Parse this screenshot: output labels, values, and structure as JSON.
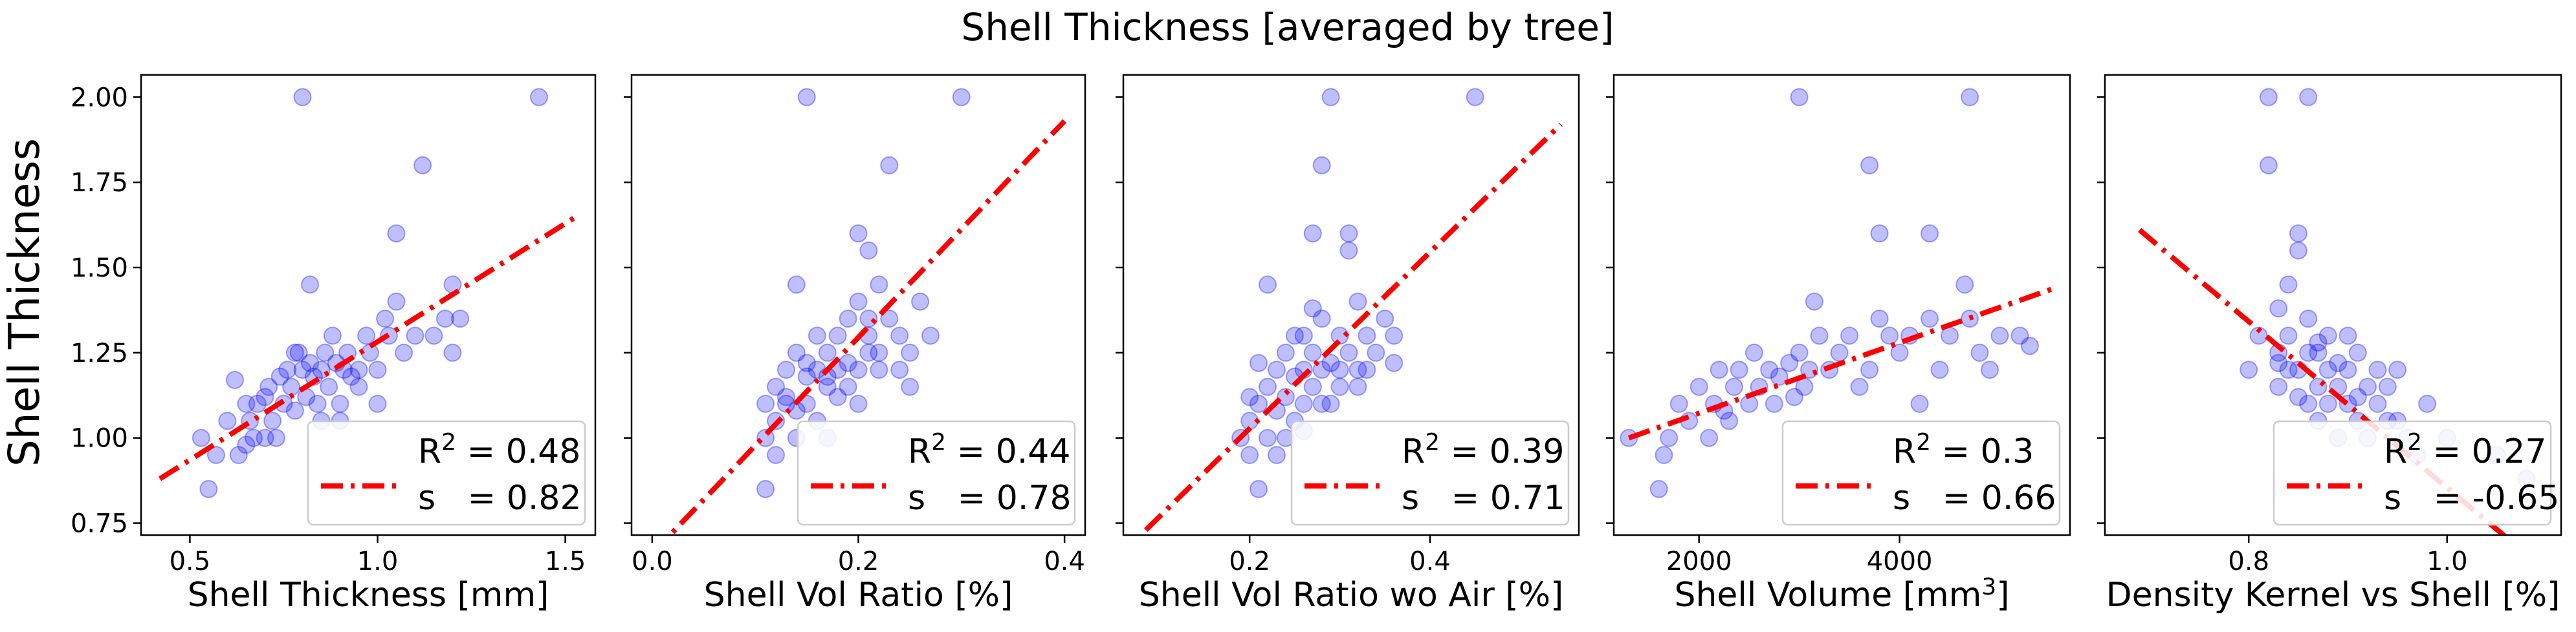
{
  "suptitle": "Shell Thickness [averaged by tree]",
  "shared_ylabel": "Shell Thickness",
  "colors": {
    "points": "#0000ff",
    "fit_line": "#ff0000",
    "axes": "#000000"
  },
  "chart_data": [
    {
      "type": "scatter",
      "xlabel": "Shell Thickness [mm]",
      "xlabel_sup": "",
      "xlabel_suffix": "",
      "xlim": [
        0.37,
        1.58
      ],
      "ylim": [
        0.715,
        2.065
      ],
      "xticks": [
        0.5,
        1.0,
        1.5
      ],
      "xtick_labels": [
        "0.5",
        "1.0",
        "1.5"
      ],
      "yticks": [
        0.75,
        1.0,
        1.25,
        1.5,
        1.75,
        2.0
      ],
      "ytick_labels": [
        "0.75",
        "1.00",
        "1.25",
        "1.50",
        "1.75",
        "2.00"
      ],
      "fit": {
        "x1": 0.42,
        "y1": 0.88,
        "x2": 1.53,
        "y2": 1.65
      },
      "legend": {
        "r2_label": "R",
        "r2_sup": "2",
        "r2_value": " = 0.48",
        "s_label": "s   = 0.82"
      },
      "points": [
        [
          0.53,
          1.0
        ],
        [
          0.55,
          0.85
        ],
        [
          0.57,
          0.95
        ],
        [
          0.6,
          1.05
        ],
        [
          0.62,
          1.17
        ],
        [
          0.63,
          0.95
        ],
        [
          0.65,
          1.1
        ],
        [
          0.66,
          1.05
        ],
        [
          0.67,
          1.0
        ],
        [
          0.68,
          1.1
        ],
        [
          0.7,
          1.12
        ],
        [
          0.71,
          1.15
        ],
        [
          0.72,
          1.05
        ],
        [
          0.73,
          1.0
        ],
        [
          0.74,
          1.18
        ],
        [
          0.75,
          1.1
        ],
        [
          0.76,
          1.2
        ],
        [
          0.77,
          1.15
        ],
        [
          0.78,
          1.08
        ],
        [
          0.79,
          1.25
        ],
        [
          0.8,
          1.2
        ],
        [
          0.81,
          1.12
        ],
        [
          0.82,
          1.22
        ],
        [
          0.83,
          1.18
        ],
        [
          0.84,
          1.1
        ],
        [
          0.85,
          1.2
        ],
        [
          0.86,
          1.25
        ],
        [
          0.87,
          1.15
        ],
        [
          0.88,
          1.3
        ],
        [
          0.89,
          1.22
        ],
        [
          0.9,
          1.1
        ],
        [
          0.91,
          1.2
        ],
        [
          0.92,
          1.25
        ],
        [
          0.93,
          1.18
        ],
        [
          0.95,
          1.2
        ],
        [
          0.97,
          1.3
        ],
        [
          0.98,
          1.25
        ],
        [
          1.0,
          1.2
        ],
        [
          1.02,
          1.35
        ],
        [
          1.03,
          1.3
        ],
        [
          1.05,
          1.4
        ],
        [
          1.05,
          1.6
        ],
        [
          1.07,
          1.25
        ],
        [
          1.1,
          1.3
        ],
        [
          1.12,
          1.8
        ],
        [
          1.15,
          1.3
        ],
        [
          1.18,
          1.35
        ],
        [
          1.2,
          1.45
        ],
        [
          1.2,
          1.25
        ],
        [
          1.22,
          1.35
        ],
        [
          0.8,
          2.0
        ],
        [
          1.43,
          2.0
        ],
        [
          0.82,
          1.45
        ],
        [
          0.7,
          1.0
        ],
        [
          0.9,
          1.05
        ],
        [
          0.95,
          1.15
        ],
        [
          1.0,
          1.1
        ],
        [
          0.78,
          1.25
        ],
        [
          0.85,
          1.05
        ],
        [
          0.65,
          0.98
        ]
      ]
    },
    {
      "type": "scatter",
      "xlabel": "Shell Vol Ratio [%]",
      "xlabel_sup": "",
      "xlabel_suffix": "",
      "xlim": [
        -0.02,
        0.42
      ],
      "ylim": [
        0.715,
        2.065
      ],
      "xticks": [
        0.0,
        0.2,
        0.4
      ],
      "xtick_labels": [
        "0.0",
        "0.2",
        "0.4"
      ],
      "yticks": [
        0.75,
        1.0,
        1.25,
        1.5,
        1.75,
        2.0
      ],
      "ytick_labels": [
        "",
        "",
        "",
        "",
        "",
        ""
      ],
      "fit": {
        "x1": 0.0,
        "y1": 0.66,
        "x2": 0.4,
        "y2": 1.93
      },
      "legend": {
        "r2_label": "R",
        "r2_sup": "2",
        "r2_value": " = 0.44",
        "s_label": "s   = 0.78"
      },
      "points": [
        [
          0.11,
          0.85
        ],
        [
          0.11,
          1.0
        ],
        [
          0.12,
          1.05
        ],
        [
          0.12,
          1.15
        ],
        [
          0.13,
          1.1
        ],
        [
          0.13,
          1.2
        ],
        [
          0.14,
          1.0
        ],
        [
          0.14,
          1.25
        ],
        [
          0.15,
          1.1
        ],
        [
          0.15,
          1.18
        ],
        [
          0.16,
          1.05
        ],
        [
          0.16,
          1.2
        ],
        [
          0.17,
          1.25
        ],
        [
          0.17,
          1.15
        ],
        [
          0.18,
          1.3
        ],
        [
          0.18,
          1.12
        ],
        [
          0.19,
          1.22
        ],
        [
          0.19,
          1.35
        ],
        [
          0.2,
          1.2
        ],
        [
          0.2,
          1.4
        ],
        [
          0.21,
          1.25
        ],
        [
          0.21,
          1.3
        ],
        [
          0.22,
          1.45
        ],
        [
          0.22,
          1.2
        ],
        [
          0.23,
          1.35
        ],
        [
          0.24,
          1.3
        ],
        [
          0.25,
          1.25
        ],
        [
          0.26,
          1.4
        ],
        [
          0.14,
          1.45
        ],
        [
          0.2,
          1.6
        ],
        [
          0.21,
          1.55
        ],
        [
          0.23,
          1.8
        ],
        [
          0.15,
          2.0
        ],
        [
          0.3,
          2.0
        ],
        [
          0.17,
          1.0
        ],
        [
          0.12,
          0.95
        ],
        [
          0.18,
          1.2
        ],
        [
          0.16,
          1.3
        ],
        [
          0.2,
          1.1
        ],
        [
          0.22,
          1.25
        ],
        [
          0.13,
          1.12
        ],
        [
          0.15,
          1.22
        ],
        [
          0.19,
          1.15
        ],
        [
          0.24,
          1.2
        ],
        [
          0.27,
          1.3
        ],
        [
          0.11,
          1.1
        ],
        [
          0.17,
          1.18
        ],
        [
          0.14,
          1.08
        ],
        [
          0.21,
          1.35
        ],
        [
          0.25,
          1.15
        ]
      ]
    },
    {
      "type": "scatter",
      "xlabel": "Shell Vol Ratio wo Air [%]",
      "xlabel_sup": "",
      "xlabel_suffix": "",
      "xlim": [
        0.06,
        0.565
      ],
      "ylim": [
        0.715,
        2.065
      ],
      "xticks": [
        0.2,
        0.4
      ],
      "xtick_labels": [
        "0.2",
        "0.4"
      ],
      "yticks": [
        0.75,
        1.0,
        1.25,
        1.5,
        1.75,
        2.0
      ],
      "ytick_labels": [
        "",
        "",
        "",
        "",
        "",
        ""
      ],
      "fit": {
        "x1": 0.085,
        "y1": 0.73,
        "x2": 0.545,
        "y2": 1.92
      },
      "legend": {
        "r2_label": "R",
        "r2_sup": "2",
        "r2_value": " = 0.39",
        "s_label": "s   = 0.71"
      },
      "points": [
        [
          0.19,
          1.0
        ],
        [
          0.2,
          0.95
        ],
        [
          0.2,
          1.05
        ],
        [
          0.21,
          1.1
        ],
        [
          0.21,
          0.85
        ],
        [
          0.22,
          1.15
        ],
        [
          0.22,
          1.0
        ],
        [
          0.23,
          1.2
        ],
        [
          0.23,
          1.08
        ],
        [
          0.24,
          1.12
        ],
        [
          0.24,
          1.25
        ],
        [
          0.25,
          1.18
        ],
        [
          0.25,
          1.05
        ],
        [
          0.26,
          1.2
        ],
        [
          0.26,
          1.3
        ],
        [
          0.27,
          1.15
        ],
        [
          0.27,
          1.25
        ],
        [
          0.28,
          1.2
        ],
        [
          0.28,
          1.35
        ],
        [
          0.29,
          1.22
        ],
        [
          0.29,
          1.1
        ],
        [
          0.3,
          1.3
        ],
        [
          0.3,
          1.2
        ],
        [
          0.31,
          1.25
        ],
        [
          0.32,
          1.4
        ],
        [
          0.32,
          1.2
        ],
        [
          0.33,
          1.3
        ],
        [
          0.34,
          1.25
        ],
        [
          0.35,
          1.35
        ],
        [
          0.36,
          1.3
        ],
        [
          0.27,
          1.6
        ],
        [
          0.28,
          1.8
        ],
        [
          0.31,
          1.55
        ],
        [
          0.31,
          1.6
        ],
        [
          0.29,
          2.0
        ],
        [
          0.45,
          2.0
        ],
        [
          0.22,
          1.45
        ],
        [
          0.24,
          1.0
        ],
        [
          0.26,
          1.1
        ],
        [
          0.2,
          1.12
        ],
        [
          0.25,
          1.3
        ],
        [
          0.3,
          1.15
        ],
        [
          0.23,
          0.95
        ],
        [
          0.28,
          1.1
        ],
        [
          0.33,
          1.2
        ],
        [
          0.27,
          1.38
        ],
        [
          0.21,
          1.22
        ],
        [
          0.26,
          1.02
        ],
        [
          0.36,
          1.22
        ],
        [
          0.32,
          1.15
        ]
      ]
    },
    {
      "type": "scatter",
      "xlabel": "Shell Volume [mm",
      "xlabel_sup": "3",
      "xlabel_suffix": "]",
      "xlim": [
        1150,
        5700
      ],
      "ylim": [
        0.715,
        2.065
      ],
      "xticks": [
        2000,
        4000
      ],
      "xtick_labels": [
        "2000",
        "4000"
      ],
      "yticks": [
        0.75,
        1.0,
        1.25,
        1.5,
        1.75,
        2.0
      ],
      "ytick_labels": [
        "",
        "",
        "",
        "",
        "",
        ""
      ],
      "fit": {
        "x1": 1300,
        "y1": 1.0,
        "x2": 5550,
        "y2": 1.44
      },
      "legend": {
        "r2_label": "R",
        "r2_sup": "2",
        "r2_value": " = 0.3",
        "s_label": "s   = 0.66"
      },
      "points": [
        [
          1300,
          1.0
        ],
        [
          1600,
          0.85
        ],
        [
          1650,
          0.95
        ],
        [
          1700,
          1.0
        ],
        [
          1800,
          1.1
        ],
        [
          1900,
          1.05
        ],
        [
          2000,
          1.15
        ],
        [
          2100,
          1.0
        ],
        [
          2150,
          1.1
        ],
        [
          2200,
          1.2
        ],
        [
          2300,
          1.05
        ],
        [
          2350,
          1.15
        ],
        [
          2400,
          1.2
        ],
        [
          2500,
          1.1
        ],
        [
          2550,
          1.25
        ],
        [
          2600,
          1.15
        ],
        [
          2700,
          1.2
        ],
        [
          2750,
          1.1
        ],
        [
          2800,
          1.18
        ],
        [
          2900,
          1.22
        ],
        [
          2950,
          1.12
        ],
        [
          3000,
          1.25
        ],
        [
          3050,
          1.15
        ],
        [
          3100,
          1.2
        ],
        [
          3150,
          1.4
        ],
        [
          3200,
          1.3
        ],
        [
          3300,
          1.2
        ],
        [
          3400,
          1.25
        ],
        [
          3500,
          1.3
        ],
        [
          3600,
          1.15
        ],
        [
          3700,
          1.2
        ],
        [
          3800,
          1.35
        ],
        [
          3900,
          1.3
        ],
        [
          4000,
          1.25
        ],
        [
          4100,
          1.3
        ],
        [
          4200,
          1.1
        ],
        [
          4300,
          1.35
        ],
        [
          4400,
          1.2
        ],
        [
          4500,
          1.3
        ],
        [
          4650,
          1.45
        ],
        [
          4700,
          1.35
        ],
        [
          4800,
          1.25
        ],
        [
          4900,
          1.2
        ],
        [
          5000,
          1.3
        ],
        [
          5200,
          1.3
        ],
        [
          5300,
          1.27
        ],
        [
          3000,
          2.0
        ],
        [
          4700,
          2.0
        ],
        [
          3700,
          1.8
        ],
        [
          3800,
          1.6
        ],
        [
          4300,
          1.6
        ],
        [
          2250,
          1.08
        ]
      ]
    },
    {
      "type": "scatter",
      "xlabel": "Density Kernel vs Shell [%]",
      "xlabel_sup": "",
      "xlabel_suffix": "",
      "xlim": [
        0.655,
        1.115
      ],
      "ylim": [
        0.715,
        2.065
      ],
      "xticks": [
        0.8,
        1.0
      ],
      "xtick_labels": [
        "0.8",
        "1.0"
      ],
      "yticks": [
        0.75,
        1.0,
        1.25,
        1.5,
        1.75,
        2.0
      ],
      "ytick_labels": [
        "",
        "",
        "",
        "",
        "",
        ""
      ],
      "fit": {
        "x1": 0.69,
        "y1": 1.61,
        "x2": 1.1,
        "y2": 0.61
      },
      "legend": {
        "r2_label": "R",
        "r2_sup": "2",
        "r2_value": " = 0.27",
        "s_label": "s   = -0.65"
      },
      "points": [
        [
          0.8,
          1.2
        ],
        [
          0.81,
          1.3
        ],
        [
          0.82,
          1.8
        ],
        [
          0.82,
          2.0
        ],
        [
          0.83,
          1.25
        ],
        [
          0.83,
          1.15
        ],
        [
          0.84,
          1.3
        ],
        [
          0.84,
          1.45
        ],
        [
          0.85,
          1.6
        ],
        [
          0.85,
          1.2
        ],
        [
          0.86,
          1.35
        ],
        [
          0.86,
          1.1
        ],
        [
          0.87,
          1.25
        ],
        [
          0.87,
          1.05
        ],
        [
          0.88,
          1.2
        ],
        [
          0.88,
          1.3
        ],
        [
          0.89,
          1.15
        ],
        [
          0.89,
          1.0
        ],
        [
          0.9,
          1.2
        ],
        [
          0.9,
          1.1
        ],
        [
          0.91,
          1.25
        ],
        [
          0.91,
          1.05
        ],
        [
          0.92,
          1.15
        ],
        [
          0.92,
          1.0
        ],
        [
          0.93,
          1.1
        ],
        [
          0.94,
          1.05
        ],
        [
          0.95,
          1.2
        ],
        [
          0.96,
          1.0
        ],
        [
          0.97,
          0.95
        ],
        [
          0.98,
          1.1
        ],
        [
          1.0,
          1.0
        ],
        [
          0.83,
          1.38
        ],
        [
          0.85,
          1.55
        ],
        [
          0.86,
          2.0
        ],
        [
          0.84,
          1.2
        ],
        [
          0.87,
          1.15
        ],
        [
          0.86,
          1.25
        ],
        [
          0.88,
          1.1
        ],
        [
          0.9,
          1.3
        ],
        [
          0.85,
          1.12
        ],
        [
          0.93,
          1.2
        ],
        [
          0.94,
          1.15
        ],
        [
          0.95,
          1.05
        ],
        [
          1.05,
          0.95
        ],
        [
          1.08,
          0.88
        ],
        [
          0.83,
          1.22
        ],
        [
          0.87,
          1.28
        ],
        [
          0.89,
          1.22
        ],
        [
          0.91,
          1.12
        ]
      ]
    }
  ]
}
